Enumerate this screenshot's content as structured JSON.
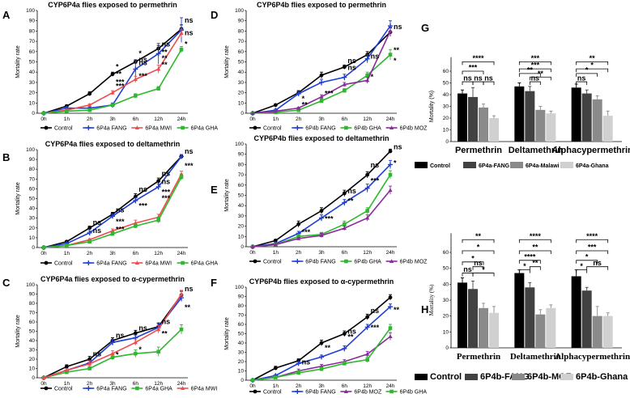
{
  "colors": {
    "Control": "#000000",
    "blue": "#1f3ed8",
    "red": "#ef4c4c",
    "green": "#2db82d",
    "purple": "#8a2b9c",
    "bar_black": "#000000",
    "bar_dark": "#424242",
    "bar_mid": "#8a8a8a",
    "bar_light": "#d0d0d0"
  },
  "chart_data": [
    {
      "panel": "A",
      "type": "line",
      "title": "CYP6P4a flies exposed to permethrin",
      "ylabel": "Mortality rate",
      "ylim": [
        0,
        100
      ],
      "yticks": [
        0,
        10,
        20,
        30,
        40,
        50,
        60,
        70,
        80,
        90,
        100
      ],
      "categories": [
        "0h",
        "1h",
        "2h",
        "3h",
        "6h",
        "12h",
        "24h"
      ],
      "series": [
        {
          "name": "Control",
          "color": "#000000",
          "values": [
            0,
            7,
            19,
            38,
            50,
            63,
            82
          ],
          "err": [
            0,
            1,
            2,
            2,
            2,
            3,
            4
          ],
          "marker": "circle"
        },
        {
          "name": "6P4a FANG",
          "color": "#1f3ed8",
          "values": [
            0,
            5,
            5,
            8,
            43,
            58,
            81
          ],
          "err": [
            0,
            1,
            1,
            2,
            8,
            10,
            12
          ],
          "marker": "plus"
        },
        {
          "name": "6P4a MWI",
          "color": "#ef4c4c",
          "values": [
            0,
            3,
            8,
            20,
            33,
            43,
            78
          ],
          "err": [
            0,
            1,
            1,
            2,
            3,
            4,
            4
          ],
          "marker": "tri"
        },
        {
          "name": "6P4a GHA",
          "color": "#2db82d",
          "values": [
            0,
            2,
            3,
            8,
            17,
            24,
            62
          ],
          "err": [
            0,
            1,
            1,
            1,
            2,
            2,
            3
          ],
          "marker": "square"
        }
      ],
      "annotations": [
        "ns",
        "ns",
        "ns",
        "ns",
        "ns",
        "*",
        "**",
        "***",
        "***",
        "**",
        "*",
        "*",
        "**",
        "**",
        "***"
      ]
    },
    {
      "panel": "B",
      "type": "line",
      "title": "CYP6P4a flies exposed to deltamethrin",
      "ylabel": "Mortality rate",
      "ylim": [
        0,
        100
      ],
      "yticks": [
        0,
        10,
        20,
        30,
        40,
        50,
        60,
        70,
        80,
        90,
        100
      ],
      "categories": [
        "0h",
        "1h",
        "2h",
        "3h",
        "6h",
        "12h",
        "24h"
      ],
      "series": [
        {
          "name": "Control",
          "color": "#000000",
          "values": [
            0,
            6,
            20,
            34,
            52,
            68,
            93
          ],
          "err": [
            0,
            1,
            2,
            2,
            3,
            3,
            2
          ],
          "marker": "circle"
        },
        {
          "name": "6P4a FANG",
          "color": "#1f3ed8",
          "values": [
            0,
            4,
            15,
            32,
            48,
            62,
            93
          ],
          "err": [
            0,
            1,
            2,
            2,
            3,
            3,
            2
          ],
          "marker": "plus"
        },
        {
          "name": "6P4a MWI",
          "color": "#ef4c4c",
          "values": [
            0,
            2,
            8,
            17,
            25,
            31,
            75
          ],
          "err": [
            0,
            1,
            1,
            2,
            3,
            3,
            3
          ],
          "marker": "tri"
        },
        {
          "name": "6P4a GHA",
          "color": "#2db82d",
          "values": [
            0,
            2,
            6,
            14,
            22,
            28,
            72
          ],
          "err": [
            0,
            1,
            1,
            2,
            2,
            3,
            3
          ],
          "marker": "square"
        }
      ],
      "annotations": [
        "ns",
        "ns",
        "ns",
        "ns",
        "ns",
        "ns",
        "ns",
        "***",
        "***",
        "***",
        "***",
        "***",
        "***"
      ]
    },
    {
      "panel": "C",
      "type": "line",
      "title": "CYP6P4a flies exposed to α-cypermethrin",
      "ylabel": "Mortality rate",
      "ylim": [
        0,
        100
      ],
      "yticks": [
        0,
        10,
        20,
        30,
        40,
        50,
        60,
        70,
        80,
        90,
        100
      ],
      "categories": [
        "0h",
        "1h",
        "2h",
        "3h",
        "6h",
        "12h",
        "24h"
      ],
      "series": [
        {
          "name": "Control",
          "color": "#000000",
          "values": [
            0,
            12,
            20,
            40,
            48,
            55,
            89
          ],
          "err": [
            0,
            2,
            3,
            3,
            3,
            4,
            4
          ],
          "marker": "circle"
        },
        {
          "name": "6P4a FANG",
          "color": "#1f3ed8",
          "values": [
            0,
            8,
            16,
            38,
            43,
            54,
            86
          ],
          "err": [
            0,
            2,
            3,
            3,
            3,
            4,
            4
          ],
          "marker": "plus"
        },
        {
          "name": "6P4a GHA",
          "color": "#2db82d",
          "values": [
            0,
            6,
            10,
            22,
            26,
            28,
            52
          ],
          "err": [
            0,
            1,
            2,
            3,
            4,
            5,
            5
          ],
          "marker": "square"
        },
        {
          "name": "6P4a MWI",
          "color": "#ef4c4c",
          "values": [
            0,
            8,
            15,
            26,
            38,
            52,
            90
          ],
          "err": [
            0,
            2,
            3,
            3,
            3,
            4,
            4
          ],
          "marker": "tri"
        }
      ],
      "annotations": [
        "ns",
        "ns",
        "ns",
        "ns",
        "ns",
        "*",
        "*",
        "**",
        "**"
      ]
    },
    {
      "panel": "D",
      "type": "line",
      "title": "CYP6P4b flies exposed to permethrin",
      "ylabel": "Mortality rate",
      "ylim": [
        0,
        100
      ],
      "yticks": [
        0,
        10,
        20,
        30,
        40,
        50,
        60,
        70,
        80,
        90,
        100
      ],
      "categories": [
        "0h",
        "1h",
        "2h",
        "3h",
        "6h",
        "12h",
        "24h"
      ],
      "series": [
        {
          "name": "Control",
          "color": "#000000",
          "values": [
            0,
            8,
            20,
            37,
            45,
            57,
            79
          ],
          "err": [
            0,
            1,
            2,
            3,
            2,
            3,
            4
          ],
          "marker": "circle"
        },
        {
          "name": "6P4b FANG",
          "color": "#1f3ed8",
          "values": [
            0,
            3,
            19,
            30,
            35,
            53,
            85
          ],
          "err": [
            0,
            1,
            2,
            3,
            3,
            4,
            5
          ],
          "marker": "plus"
        },
        {
          "name": "6P4b GHA",
          "color": "#2db82d",
          "values": [
            0,
            1,
            3,
            12,
            22,
            37,
            57
          ],
          "err": [
            0,
            1,
            1,
            2,
            2,
            3,
            5
          ],
          "marker": "square"
        },
        {
          "name": "6P4b MOZ",
          "color": "#8a2b9c",
          "values": [
            0,
            2,
            5,
            16,
            28,
            32,
            80
          ],
          "err": [
            0,
            1,
            1,
            2,
            2,
            3,
            4
          ],
          "marker": "tri"
        }
      ],
      "annotations": [
        "ns",
        "ns",
        "ns",
        "ns",
        "*",
        "**",
        "***",
        "*",
        "*",
        "**"
      ]
    },
    {
      "panel": "E",
      "type": "line",
      "title": "CYP6P4b flies exposed to deltamethrin",
      "ylabel": "Mortality rate",
      "ylim": [
        0,
        100
      ],
      "yticks": [
        0,
        10,
        20,
        30,
        40,
        50,
        60,
        70,
        80,
        90,
        100
      ],
      "categories": [
        "0h",
        "1h",
        "2h",
        "3h",
        "6h",
        "12h",
        "24h"
      ],
      "series": [
        {
          "name": "Control",
          "color": "#000000",
          "values": [
            0,
            6,
            22,
            35,
            52,
            70,
            93
          ],
          "err": [
            0,
            1,
            3,
            3,
            3,
            3,
            2
          ],
          "marker": "circle"
        },
        {
          "name": "6P4b FANG",
          "color": "#1f3ed8",
          "values": [
            0,
            3,
            13,
            28,
            43,
            57,
            80
          ],
          "err": [
            0,
            1,
            2,
            3,
            3,
            4,
            4
          ],
          "marker": "plus"
        },
        {
          "name": "6P4b GHA",
          "color": "#2db82d",
          "values": [
            0,
            2,
            10,
            12,
            22,
            35,
            70
          ],
          "err": [
            0,
            1,
            2,
            2,
            3,
            3,
            4
          ],
          "marker": "square"
        },
        {
          "name": "6P4b MOZ",
          "color": "#8a2b9c",
          "values": [
            0,
            2,
            8,
            11,
            18,
            28,
            55
          ],
          "err": [
            0,
            1,
            1,
            2,
            2,
            3,
            4
          ],
          "marker": "tri"
        }
      ],
      "annotations": [
        "ns",
        "ns",
        "ns",
        "***",
        "***",
        "**",
        "***",
        "*"
      ]
    },
    {
      "panel": "F",
      "type": "line",
      "title": "CYP6P4b flies exposed to α-cypermethrin",
      "ylabel": "Mortality rate",
      "ylim": [
        0,
        100
      ],
      "yticks": [
        0,
        10,
        20,
        30,
        40,
        50,
        60,
        70,
        80,
        90,
        100
      ],
      "categories": [
        "0h",
        "1h",
        "2h",
        "3h",
        "6h",
        "12h",
        "24h"
      ],
      "series": [
        {
          "name": "Control",
          "color": "#000000",
          "values": [
            0,
            13,
            21,
            40,
            50,
            68,
            89
          ],
          "err": [
            0,
            2,
            2,
            3,
            3,
            3,
            3
          ],
          "marker": "circle"
        },
        {
          "name": "6P4b FANG",
          "color": "#1f3ed8",
          "values": [
            0,
            5,
            18,
            25,
            34,
            57,
            79
          ],
          "err": [
            0,
            1,
            2,
            2,
            3,
            3,
            3
          ],
          "marker": "plus"
        },
        {
          "name": "6P4b MOZ",
          "color": "#8a2b9c",
          "values": [
            0,
            3,
            10,
            15,
            20,
            28,
            47
          ],
          "err": [
            0,
            1,
            2,
            2,
            2,
            3,
            4
          ],
          "marker": "tri"
        },
        {
          "name": "6P4b GHA",
          "color": "#2db82d",
          "values": [
            0,
            3,
            8,
            12,
            18,
            22,
            56
          ],
          "err": [
            0,
            1,
            2,
            2,
            2,
            3,
            4
          ],
          "marker": "square"
        }
      ],
      "annotations": [
        "ns",
        "ns",
        "ns",
        "**",
        "**",
        "***",
        "**"
      ]
    },
    {
      "panel": "G",
      "type": "bar",
      "ylabel": "Mortality (%)",
      "ylim": [
        0,
        60
      ],
      "yticks": [
        0,
        10,
        20,
        30,
        40,
        50,
        60
      ],
      "categories": [
        "Permethrin",
        "Deltamethrin",
        "Alphacypermethrin"
      ],
      "series": [
        {
          "name": "Control",
          "color": "#000000",
          "values": [
            41,
            47,
            46
          ],
          "err": [
            3,
            3,
            3
          ]
        },
        {
          "name": "6P4a-FANG",
          "color": "#424242",
          "values": [
            38,
            43,
            41
          ],
          "err": [
            8,
            4,
            3
          ]
        },
        {
          "name": "6P4a-Malawi",
          "color": "#8a8a8a",
          "values": [
            29,
            27,
            36
          ],
          "err": [
            3,
            3,
            3
          ]
        },
        {
          "name": "6P4a-Ghana",
          "color": "#d0d0d0",
          "values": [
            20,
            24,
            22
          ],
          "err": [
            2,
            2,
            4
          ]
        }
      ],
      "brackets": {
        "Permethrin": [
          "****",
          "***",
          "ns",
          "ns",
          "ns"
        ],
        "Deltamethrin": [
          "***",
          "**",
          "***",
          "ns",
          "**"
        ],
        "Alphacypermethrin": [
          "**",
          "*",
          "*",
          "ns"
        ]
      }
    },
    {
      "panel": "H",
      "type": "bar",
      "ylabel": "Mortality (%)",
      "ylim": [
        0,
        60
      ],
      "yticks": [
        0,
        10,
        20,
        30,
        40,
        50,
        60
      ],
      "categories": [
        "Permethrin",
        "Deltamethrin",
        "Alphacypermethrin"
      ],
      "series": [
        {
          "name": "Control",
          "color": "#000000",
          "values": [
            41,
            47,
            45
          ],
          "err": [
            3,
            2,
            4
          ]
        },
        {
          "name": "6P4b-FANG",
          "color": "#424242",
          "values": [
            37,
            38,
            36
          ],
          "err": [
            5,
            3,
            2
          ]
        },
        {
          "name": "6P4b-MOZ",
          "color": "#8a8a8a",
          "values": [
            25,
            21,
            20
          ],
          "err": [
            3,
            3,
            6
          ]
        },
        {
          "name": "6P4b-Ghana",
          "color": "#d0d0d0",
          "values": [
            22,
            25,
            20
          ],
          "err": [
            4,
            2,
            2
          ]
        }
      ],
      "brackets": {
        "Permethrin": [
          "**",
          "*",
          "*",
          "ns",
          "*",
          "ns"
        ],
        "Deltamethrin": [
          "****",
          "**",
          "****",
          "*",
          "**"
        ],
        "Alphacypermethrin": [
          "****",
          "***",
          "*",
          "*",
          "ns"
        ]
      }
    }
  ]
}
